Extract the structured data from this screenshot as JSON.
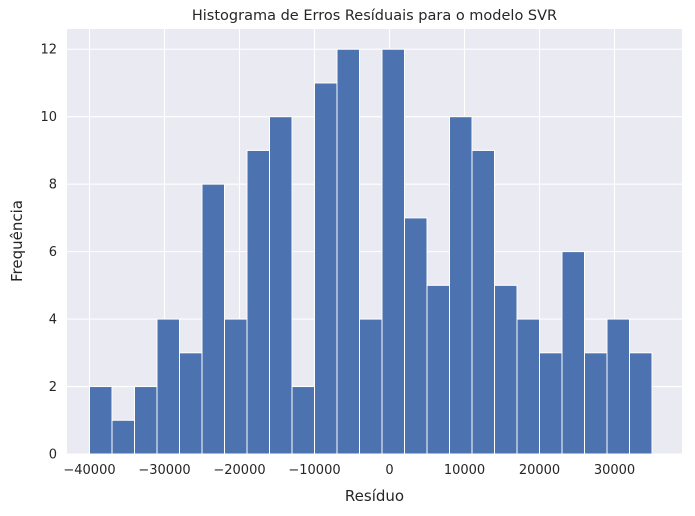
{
  "chart_data": {
    "type": "bar",
    "title": "Histograma de Erros Resíduais para o modelo SVR",
    "xlabel": "Resíduo",
    "ylabel": "Frequência",
    "bin_start": -40000,
    "bin_width": 3000,
    "values": [
      2,
      1,
      2,
      4,
      3,
      8,
      4,
      9,
      10,
      2,
      11,
      12,
      4,
      12,
      7,
      5,
      10,
      9,
      5,
      4,
      3,
      6,
      3,
      4,
      3
    ],
    "xlim": [
      -43000,
      39000
    ],
    "ylim": [
      0,
      12.6
    ],
    "xticks": [
      -40000,
      -30000,
      -20000,
      -10000,
      0,
      10000,
      20000,
      30000
    ],
    "xtick_labels": [
      "−40000",
      "−30000",
      "−20000",
      "−10000",
      "0",
      "10000",
      "20000",
      "30000"
    ],
    "yticks": [
      0,
      2,
      4,
      6,
      8,
      10,
      12
    ],
    "ytick_labels": [
      "0",
      "2",
      "4",
      "6",
      "8",
      "10",
      "12"
    ],
    "grid": true,
    "colors": {
      "bar": "#4c72b0",
      "background": "#eaeaf2",
      "grid": "#ffffff"
    }
  }
}
